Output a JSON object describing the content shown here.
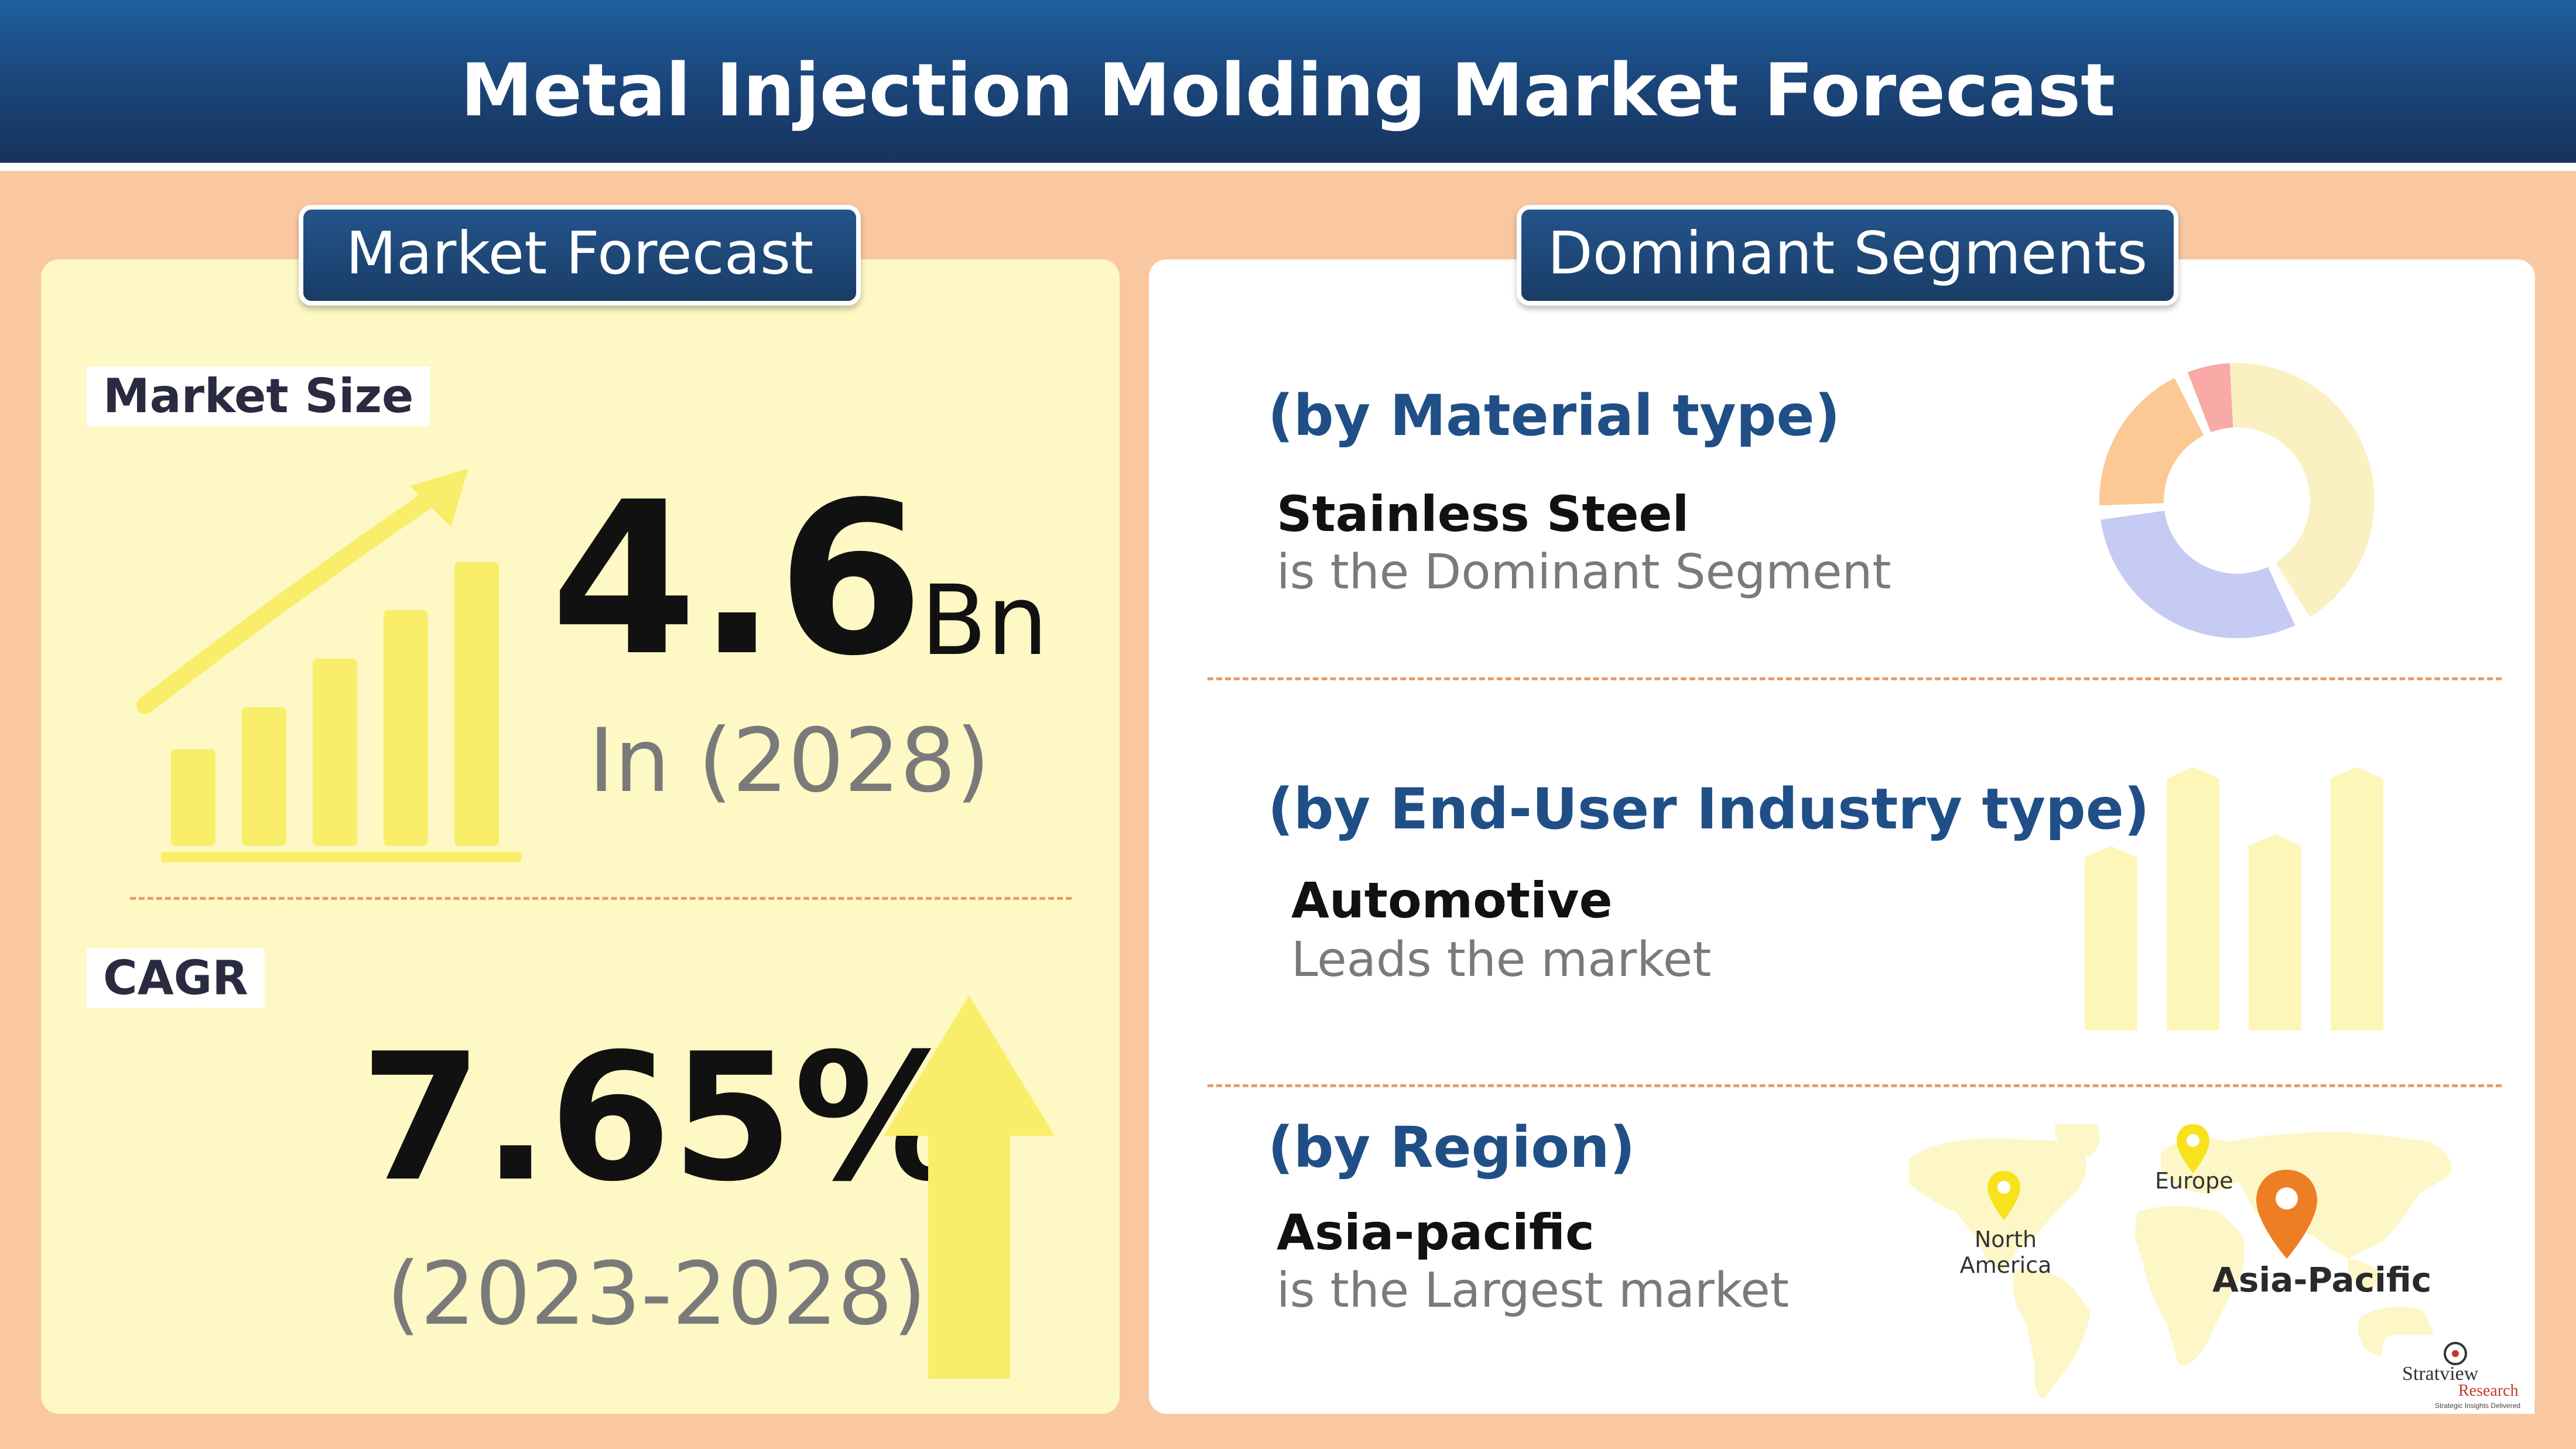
{
  "header": {
    "title": "Metal Injection Molding Market Forecast"
  },
  "market_forecast": {
    "tab_label": "Market Forecast",
    "market_size": {
      "label": "Market Size",
      "value": "4.6",
      "unit": "Bn",
      "year": "In (2028)"
    },
    "cagr": {
      "label": "CAGR",
      "value": "7.65%",
      "period": "(2023-2028)"
    }
  },
  "dominant_segments": {
    "tab_label": "Dominant Segments",
    "material": {
      "title": "(by Material type)",
      "name": "Stainless Steel",
      "desc": "is the Dominant Segment"
    },
    "end_user": {
      "title": "(by End-User Industry type)",
      "name": "Automotive",
      "desc": "Leads the market"
    },
    "region": {
      "title": "(by Region)",
      "name": "Asia-pacific",
      "desc": "is the Largest market",
      "map_labels": {
        "north_america": "North America",
        "europe": "Europe",
        "asia_pacific": "Asia-Pacific"
      }
    }
  },
  "logo": {
    "line1": "Stratview",
    "line2": "Research",
    "tagline": "Strategic Insights Delivered"
  },
  "colors": {
    "header_blue": "#1a4477",
    "background_peach": "#f9c7a0",
    "left_panel": "#fdf8c4",
    "accent_yellow": "#f9ee6a",
    "segment_title_blue": "#1f4f86",
    "pin_orange": "#ee7e24",
    "pin_yellow": "#f7e21c"
  },
  "icons": [
    "growth-chart-icon",
    "up-arrow-icon",
    "donut-chart-icon",
    "bar-chart-icon",
    "world-map-icon",
    "location-pin-icon"
  ]
}
